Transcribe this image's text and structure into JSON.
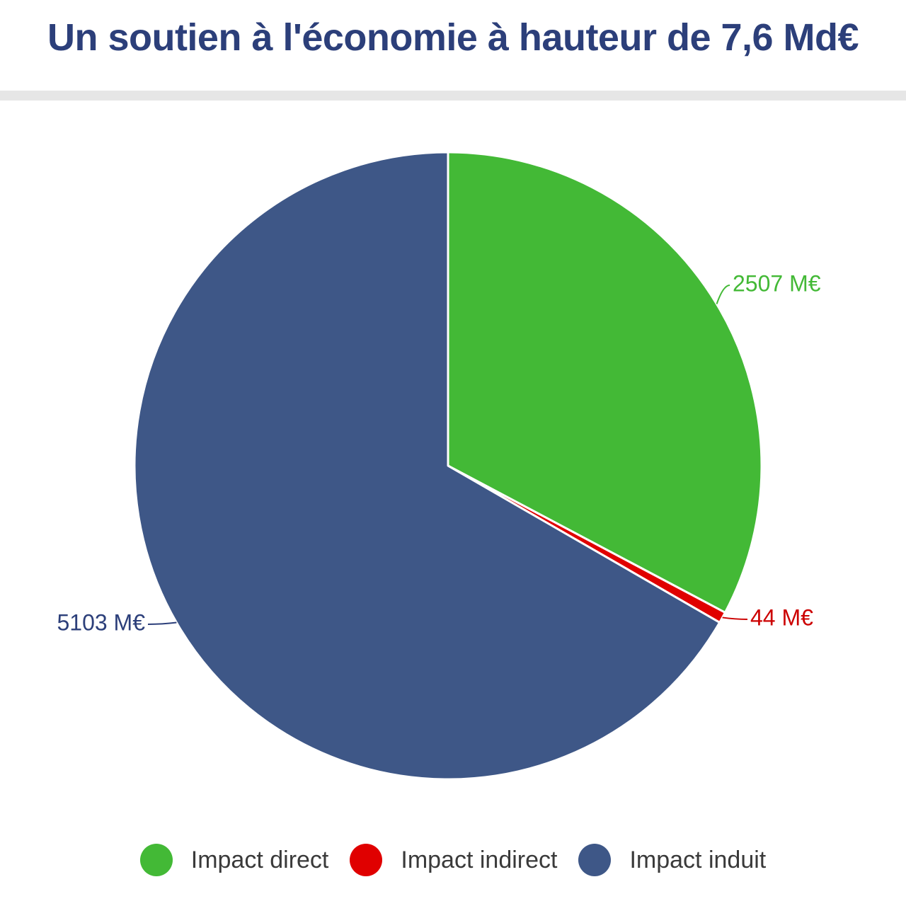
{
  "header": {
    "title": "Un soutien à l'économie à hauteur de 7,6 Md€"
  },
  "chart_data": {
    "type": "pie",
    "title": "Un soutien à l'économie à hauteur de 7,6 Md€",
    "unit": "M€",
    "start_angle_deg": 0,
    "direction": "clockwise",
    "legend_position": "bottom",
    "slices": [
      {
        "name": "Impact direct",
        "value": 2507,
        "label": "2507 M€",
        "color": "#43b936"
      },
      {
        "name": "Impact indirect",
        "value": 44,
        "label": "44 M€",
        "color": "#e00000"
      },
      {
        "name": "Impact induit",
        "value": 5103,
        "label": "5103 M€",
        "color": "#3e5787"
      }
    ]
  },
  "legend": {
    "items": [
      {
        "label": "Impact direct",
        "color": "#43b936"
      },
      {
        "label": "Impact indirect",
        "color": "#e00000"
      },
      {
        "label": "Impact induit",
        "color": "#3e5787"
      }
    ]
  }
}
